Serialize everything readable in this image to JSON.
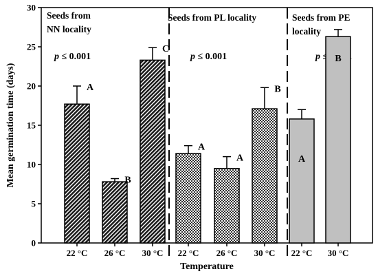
{
  "chart_data": {
    "type": "bar",
    "ylabel": "Mean germination time (days)",
    "xlabel": "Temperature",
    "ylim": [
      0,
      30
    ],
    "yticks": [
      0,
      5,
      10,
      15,
      20,
      25,
      30
    ],
    "panels": [
      {
        "title_lines": [
          "Seeds from",
          "NN locality"
        ],
        "p_prefix": "p",
        "p_value": "≤ 0.001",
        "fill": "dark-hatch",
        "bars": [
          {
            "category": "22 °C",
            "value": 17.7,
            "error": 2.3,
            "letter": "A"
          },
          {
            "category": "26 °C",
            "value": 7.8,
            "error": 0.4,
            "letter": "B"
          },
          {
            "category": "30 °C",
            "value": 23.3,
            "error": 1.6,
            "letter": "C"
          }
        ]
      },
      {
        "title_lines": [
          "Seeds from PL locality"
        ],
        "p_prefix": "p",
        "p_value": "≤ 0.001",
        "fill": "checker",
        "bars": [
          {
            "category": "22 °C",
            "value": 11.4,
            "error": 1.0,
            "letter": "A"
          },
          {
            "category": "26 °C",
            "value": 9.5,
            "error": 1.5,
            "letter": "A"
          },
          {
            "category": "30 °C",
            "value": 17.1,
            "error": 2.7,
            "letter": "B"
          }
        ]
      },
      {
        "title_lines": [
          "Seeds from PE",
          "locality"
        ],
        "p_prefix": "p",
        "p_value": "≤ 0.001",
        "fill": "#c0c0c0",
        "bars": [
          {
            "category": "22 °C",
            "value": 15.8,
            "error": 1.2,
            "letter": "A"
          },
          {
            "category": "30 °C",
            "value": 26.3,
            "error": 0.9,
            "letter": "B"
          }
        ]
      }
    ]
  }
}
